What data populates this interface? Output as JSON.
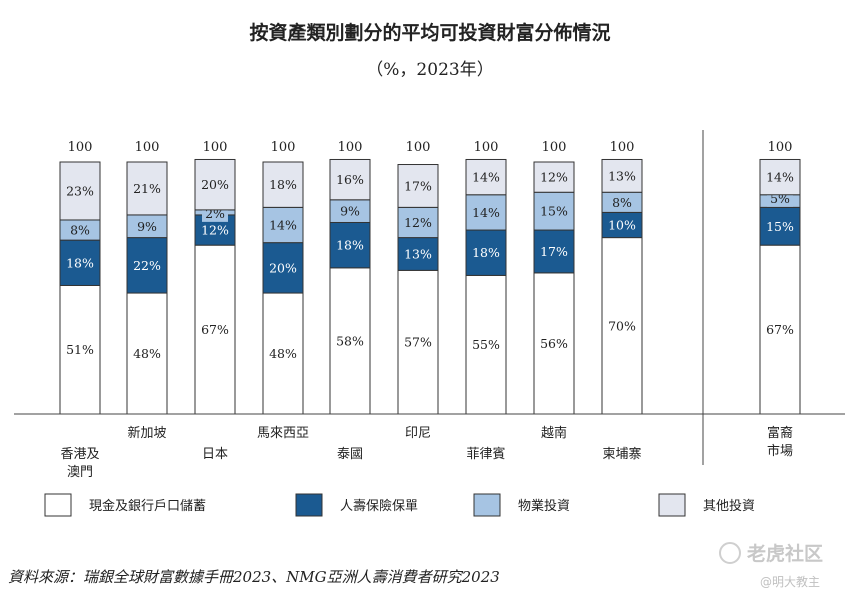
{
  "chart_data": {
    "type": "bar",
    "stacked": true,
    "title": "按資產類別劃分的平均可投資財富分佈情況",
    "subtitle": "（%，2023年）",
    "categories": [
      "香港及\n澳門",
      "新加坡",
      "日本",
      "馬來西亞",
      "泰國",
      "印尼",
      "菲律賓",
      "越南",
      "柬埔寨",
      "富裔\n市場"
    ],
    "totals": [
      100,
      100,
      100,
      100,
      100,
      100,
      100,
      100,
      100,
      100
    ],
    "series": [
      {
        "name": "現金及銀行戶口儲蓄",
        "color": "#ffffff",
        "values": [
          51,
          48,
          67,
          48,
          58,
          57,
          55,
          56,
          70,
          67
        ]
      },
      {
        "name": "人壽保險保單",
        "color": "#1b5a91",
        "values": [
          18,
          22,
          12,
          20,
          18,
          13,
          18,
          17,
          10,
          15
        ]
      },
      {
        "name": "物業投資",
        "color": "#a6c4e3",
        "values": [
          8,
          9,
          2,
          14,
          9,
          12,
          14,
          15,
          8,
          5
        ]
      },
      {
        "name": "其他投資",
        "color": "#e3e6ef",
        "values": [
          23,
          21,
          20,
          18,
          16,
          17,
          14,
          12,
          13,
          14
        ]
      }
    ],
    "ylim": [
      0,
      100
    ],
    "legend_position": "bottom"
  },
  "source": "資料來源：瑞銀全球財富數據手冊2023、NMG亞洲人壽消費者研究2023",
  "watermark": {
    "brand": "老虎社区",
    "handle": "@明大教主"
  }
}
